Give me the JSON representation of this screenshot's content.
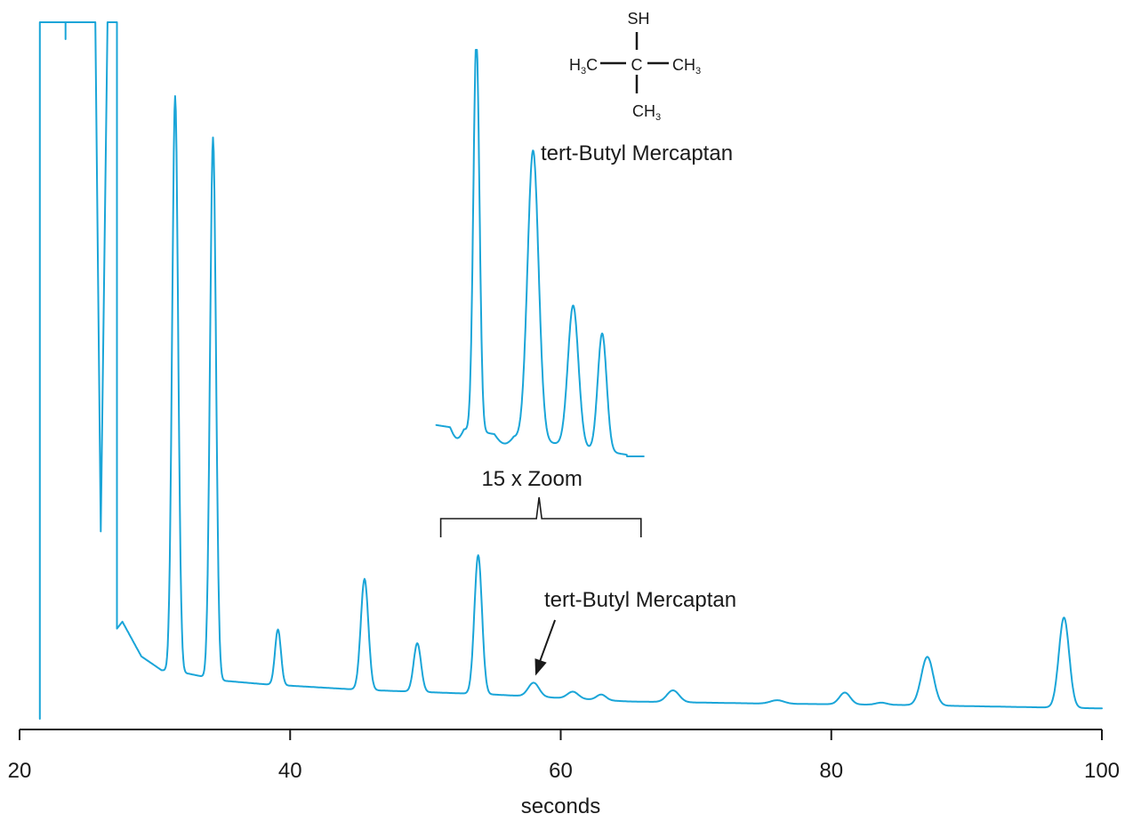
{
  "chart_data": {
    "type": "line",
    "title": "",
    "xlabel": "seconds",
    "ylabel": "",
    "xlim": [
      20,
      100
    ],
    "xticks": [
      20,
      40,
      60,
      80,
      100
    ],
    "grid": false,
    "legend": "none",
    "colors": {
      "trace": "#1aa5d8",
      "ink": "#1a1a1a"
    },
    "series": [
      {
        "baseline": [
          [
            21.5,
            0.03
          ],
          [
            27.2,
            0.13
          ],
          [
            27.6,
            0.14
          ],
          [
            29,
            0.09
          ],
          [
            30.5,
            0.07
          ],
          [
            32.5,
            0.065
          ],
          [
            35,
            0.055
          ],
          [
            38,
            0.05
          ],
          [
            45,
            0.042
          ],
          [
            55,
            0.035
          ],
          [
            65,
            0.025
          ],
          [
            75,
            0.022
          ],
          [
            85,
            0.02
          ],
          [
            100,
            0.015
          ]
        ],
        "peaks": [
          {
            "t": 31.5,
            "h": 0.83,
            "w": 0.22
          },
          {
            "t": 34.3,
            "h": 0.78,
            "w": 0.22
          },
          {
            "t": 39.1,
            "h": 0.08,
            "w": 0.22
          },
          {
            "t": 45.5,
            "h": 0.16,
            "w": 0.28
          },
          {
            "t": 49.4,
            "h": 0.07,
            "w": 0.27
          },
          {
            "t": 53.9,
            "h": 0.2,
            "w": 0.28
          },
          {
            "t": 58.0,
            "h": 0.02,
            "w": 0.4
          },
          {
            "t": 60.9,
            "h": 0.01,
            "w": 0.4
          },
          {
            "t": 63.0,
            "h": 0.008,
            "w": 0.35
          },
          {
            "t": 68.3,
            "h": 0.017,
            "w": 0.45
          },
          {
            "t": 76.0,
            "h": 0.005,
            "w": 0.5
          },
          {
            "t": 81.0,
            "h": 0.017,
            "w": 0.4
          },
          {
            "t": 83.7,
            "h": 0.003,
            "w": 0.4
          },
          {
            "t": 87.1,
            "h": 0.07,
            "w": 0.45
          },
          {
            "t": 97.2,
            "h": 0.13,
            "w": 0.38
          }
        ],
        "clipped_regions": [
          [
            21.5,
            25.6
          ],
          [
            26.5,
            27.2
          ]
        ],
        "dip": {
          "t": 26.0,
          "value": 0.27
        }
      }
    ],
    "inset": {
      "zoom_label": "15 x Zoom",
      "peak_label": "tert-Butyl Mercaptan"
    },
    "annotation": {
      "text": "tert-Butyl Mercaptan",
      "target_t": 58.0
    },
    "structure": {
      "top": "SH",
      "left": "H",
      "left_sub": "3",
      "left_tail": "C",
      "center": "C",
      "right": "CH",
      "right_sub": "3",
      "bottom": "CH",
      "bottom_sub": "3"
    }
  }
}
